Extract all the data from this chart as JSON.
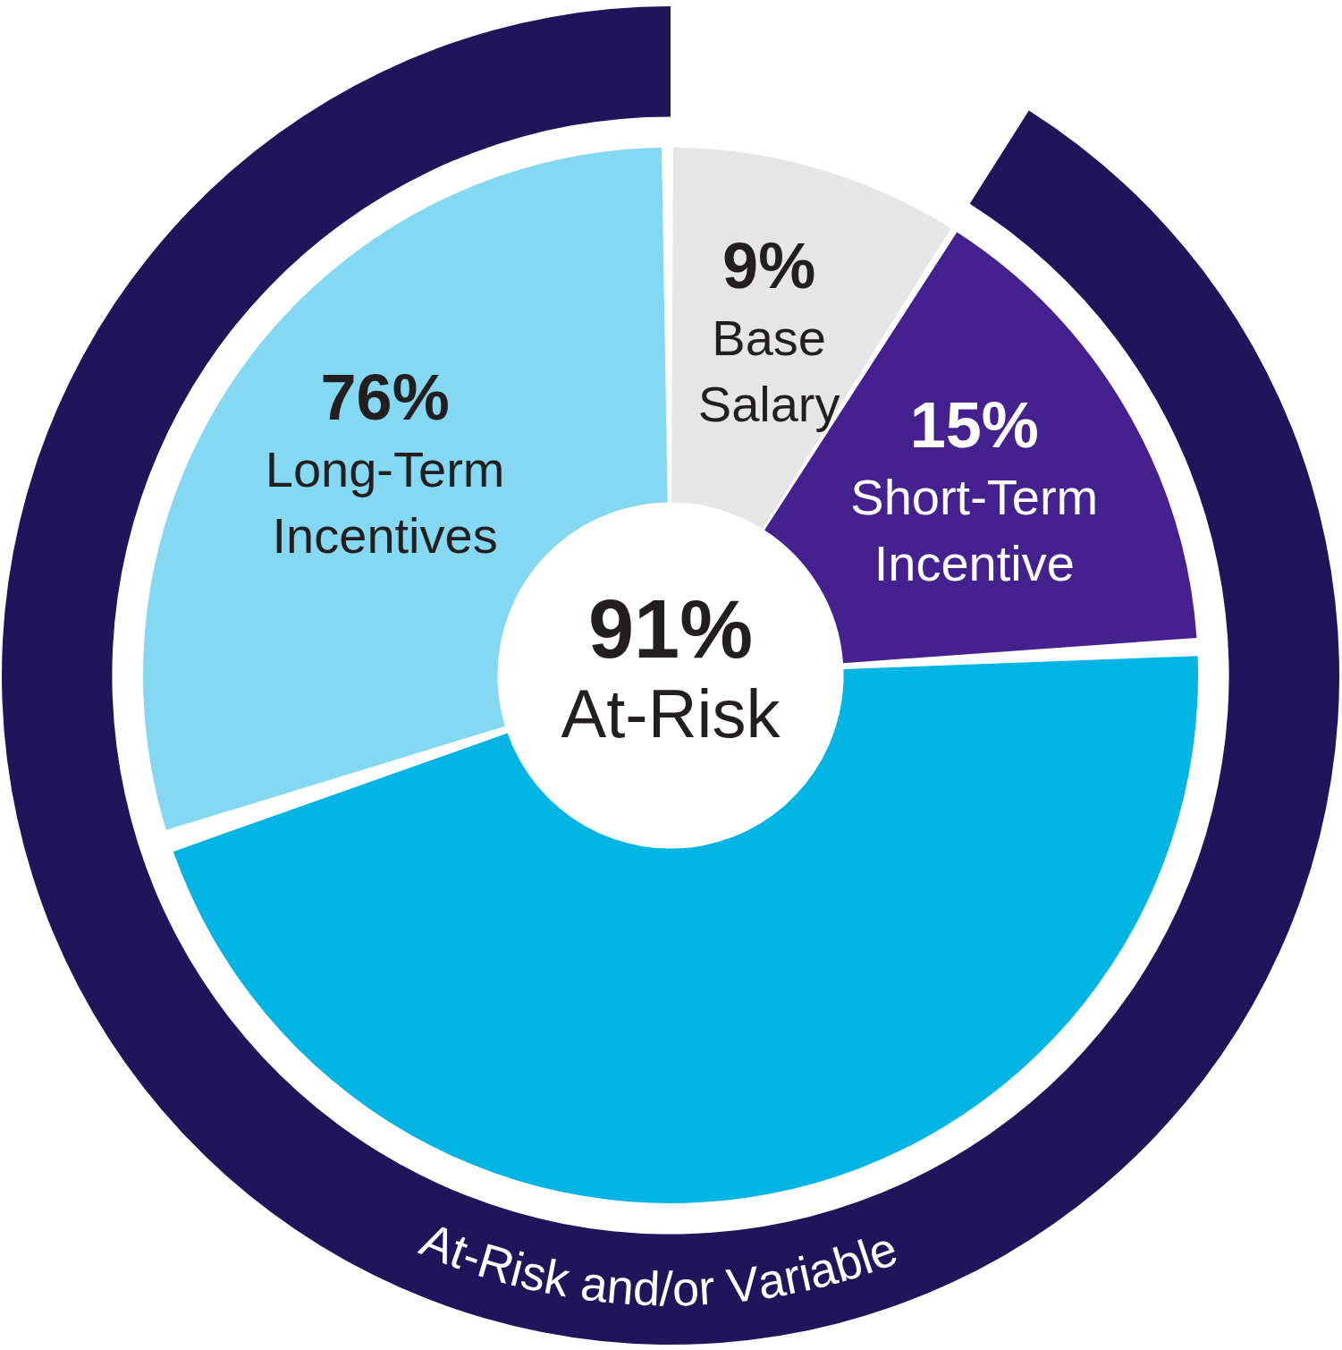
{
  "chart_data": {
    "type": "donut",
    "categories": [
      "Base Salary",
      "Short-Term Incentive",
      null,
      "Long-Term Incentives"
    ],
    "series": [
      {
        "values": [
          9,
          15,
          46,
          30
        ],
        "colors": [
          "#e6e6e6",
          "#45208f",
          "#00b4e3",
          "#84d8f2"
        ],
        "value_labels": [
          "9%",
          "15%",
          null,
          null
        ]
      },
      {
        "type": "donut",
        "name": "At-Risk and/or Variable",
        "values": [
          null,
          91,
          null,
          null
        ],
        "colors": [
          "#20145a",
          "#20145a",
          "#20145a",
          "#20145a"
        ],
        "value_labels": [
          null,
          "91%",
          null,
          null
        ]
      }
    ],
    "annotations": [
      "At-Risk",
      "76%"
    ]
  }
}
